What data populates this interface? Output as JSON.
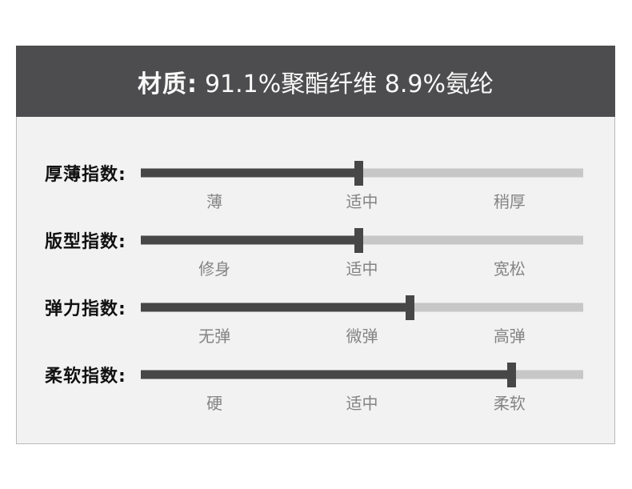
{
  "title_bar": {
    "label": "材质:",
    "value": "91.1%聚酯纤维 8.9%氨纶"
  },
  "sliders": [
    {
      "label": "厚薄指数:",
      "percent": 49.3,
      "categories": [
        "薄",
        "适中",
        "稍厚"
      ]
    },
    {
      "label": "版型指数:",
      "percent": 49.3,
      "categories": [
        "修身",
        "适中",
        "宽松"
      ]
    },
    {
      "label": "弹力指数:",
      "percent": 60.8,
      "categories": [
        "无弹",
        "微弹",
        "高弹"
      ]
    },
    {
      "label": "柔软指数:",
      "percent": 83.9,
      "categories": [
        "硬",
        "适中",
        "柔软"
      ]
    }
  ],
  "colors": {
    "header_bg": "#4d4d4f",
    "body_bg": "#f2f2f2",
    "bar_dark": "#474747",
    "bar_light": "#c7c7c7",
    "category_text": "#848484",
    "border": "#b9b9b9"
  },
  "chart_data": {
    "type": "bar",
    "title": "材质: 91.1%聚酯纤维 8.9%氨纶",
    "categories": [
      "厚薄指数",
      "版型指数",
      "弹力指数",
      "柔软指数"
    ],
    "values": [
      49.3,
      49.3,
      60.8,
      83.9
    ],
    "xlim": [
      0,
      100
    ],
    "value_meaning": "handle position as percent of scale track",
    "scale_labels": [
      [
        "薄",
        "适中",
        "稍厚"
      ],
      [
        "修身",
        "适中",
        "宽松"
      ],
      [
        "无弹",
        "微弹",
        "高弹"
      ],
      [
        "硬",
        "适中",
        "柔软"
      ]
    ],
    "legend_position": "none",
    "grid": false
  }
}
